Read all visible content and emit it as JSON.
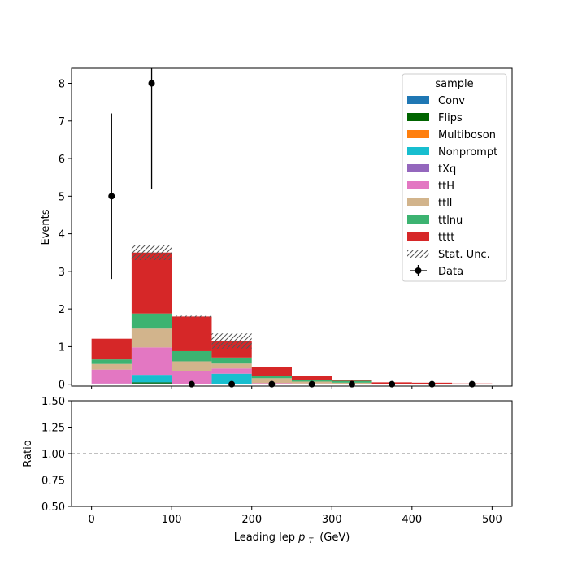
{
  "chart_data": {
    "type": "bar",
    "stacked": true,
    "bin_edges": [
      0,
      50,
      100,
      150,
      200,
      250,
      300,
      350,
      400,
      450,
      500
    ],
    "xlabel": "Leading lep",
    "xlabel_symbol": "p",
    "xlabel_sub": "T",
    "xlabel_unit": "(GeV)",
    "ylabel": "Events",
    "ratio_ylabel": "Ratio",
    "xlim": [
      -25,
      525
    ],
    "ylim": [
      -0.05,
      8.4
    ],
    "ratio_ylim": [
      0.5,
      1.5
    ],
    "x_ticks": [
      "0",
      "100",
      "200",
      "300",
      "400",
      "500"
    ],
    "y_ticks": [
      "0",
      "1",
      "2",
      "3",
      "4",
      "5",
      "6",
      "7",
      "8"
    ],
    "ratio_ticks": [
      "0.50",
      "0.75",
      "1.00",
      "1.25",
      "1.50"
    ],
    "legend_title": "sample",
    "legend_position": "upper-right",
    "series": [
      {
        "name": "Conv",
        "color": "#1f77b4",
        "values": [
          0.0,
          0.02,
          0.0,
          0.0,
          0.0,
          0.0,
          0.0,
          0.0,
          0.0,
          0.0
        ]
      },
      {
        "name": "Flips",
        "color": "#006400",
        "values": [
          0.0,
          0.03,
          0.0,
          0.0,
          0.0,
          0.0,
          0.0,
          0.0,
          0.0,
          0.0
        ]
      },
      {
        "name": "Multiboson",
        "color": "#ff7f0e",
        "values": [
          0.0,
          0.0,
          0.0,
          0.0,
          0.0,
          0.0,
          0.0,
          0.0,
          0.0,
          0.0
        ]
      },
      {
        "name": "Nonprompt",
        "color": "#17becf",
        "values": [
          0.0,
          0.2,
          0.0,
          0.28,
          0.0,
          0.0,
          0.0,
          0.0,
          0.0,
          0.0
        ]
      },
      {
        "name": "tXq",
        "color": "#9467bd",
        "values": [
          0.02,
          0.0,
          0.0,
          0.0,
          0.0,
          0.0,
          0.0,
          0.0,
          0.0,
          0.0
        ]
      },
      {
        "name": "ttH",
        "color": "#e377c2",
        "values": [
          0.37,
          0.73,
          0.36,
          0.14,
          0.03,
          0.02,
          0.01,
          0.0,
          0.0,
          0.0
        ]
      },
      {
        "name": "ttll",
        "color": "#d2b48c",
        "values": [
          0.15,
          0.5,
          0.25,
          0.13,
          0.13,
          0.05,
          0.03,
          0.0,
          0.0,
          0.0
        ]
      },
      {
        "name": "ttlnu",
        "color": "#3cb371",
        "values": [
          0.12,
          0.4,
          0.27,
          0.16,
          0.07,
          0.04,
          0.05,
          0.01,
          0.0,
          0.0
        ]
      },
      {
        "name": "tttt",
        "color": "#d62728",
        "values": [
          0.55,
          1.62,
          0.92,
          0.44,
          0.22,
          0.1,
          0.03,
          0.04,
          0.04,
          0.02
        ]
      }
    ],
    "stat_unc": {
      "name": "Stat. Unc.",
      "values": [
        0.0,
        0.2,
        0.02,
        0.2,
        0.0,
        0.0,
        0.0,
        0.0,
        0.0,
        0.0
      ]
    },
    "data": {
      "name": "Data",
      "x": [
        25,
        75,
        125,
        175,
        225,
        275,
        325,
        375,
        425,
        475
      ],
      "y": [
        5,
        8,
        0,
        0,
        0,
        0,
        0,
        0,
        0,
        0
      ],
      "err": [
        2.2,
        2.8,
        0,
        0,
        0,
        0,
        0,
        0,
        0,
        0
      ]
    },
    "ratio_reference": 1.0
  }
}
